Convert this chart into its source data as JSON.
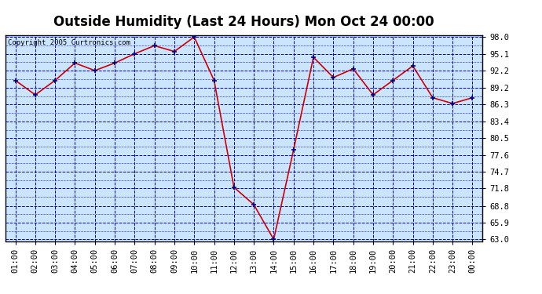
{
  "title": "Outside Humidity (Last 24 Hours) Mon Oct 24 00:00",
  "copyright": "Copyright 2005 Curtronics.com",
  "x_labels": [
    "01:00",
    "02:00",
    "03:00",
    "04:00",
    "05:00",
    "06:00",
    "07:00",
    "08:00",
    "09:00",
    "10:00",
    "11:00",
    "12:00",
    "13:00",
    "14:00",
    "15:00",
    "16:00",
    "17:00",
    "18:00",
    "19:00",
    "20:00",
    "21:00",
    "22:00",
    "23:00",
    "00:00"
  ],
  "y_values": [
    90.5,
    88.0,
    90.5,
    93.5,
    92.2,
    93.5,
    95.1,
    96.5,
    95.5,
    98.0,
    90.5,
    72.0,
    69.0,
    63.0,
    78.5,
    94.5,
    91.0,
    92.5,
    88.0,
    90.5,
    93.0,
    87.5,
    86.5,
    87.5
  ],
  "y_min": 63.0,
  "y_max": 98.0,
  "y_ticks": [
    63.0,
    65.9,
    68.8,
    71.8,
    74.7,
    77.6,
    80.5,
    83.4,
    86.3,
    89.2,
    92.2,
    95.1,
    98.0
  ],
  "line_color": "#cc0000",
  "marker_color": "#000080",
  "bg_color": "#cce5ff",
  "grid_color": "#0000bb",
  "title_fontsize": 12,
  "tick_fontsize": 7.5,
  "copyright_fontsize": 6.5
}
